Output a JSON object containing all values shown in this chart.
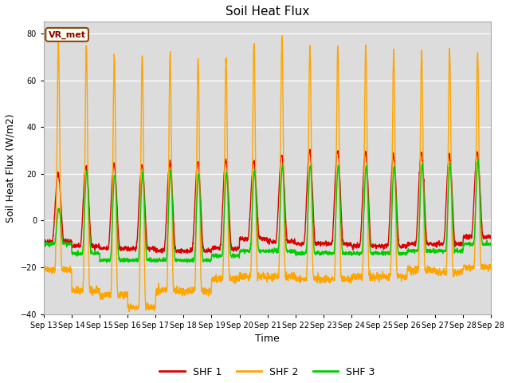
{
  "title": "Soil Heat Flux",
  "ylabel": "Soil Heat Flux (W/m2)",
  "xlabel": "Time",
  "ylim": [
    -40,
    85
  ],
  "yticks": [
    -40,
    -20,
    0,
    20,
    40,
    60,
    80
  ],
  "figure_bg": "#ffffff",
  "plot_bg": "#dcdcdc",
  "legend_labels": [
    "SHF 1",
    "SHF 2",
    "SHF 3"
  ],
  "legend_colors": [
    "#dd0000",
    "#ffa500",
    "#00cc00"
  ],
  "watermark_text": "VR_met",
  "num_days": 16,
  "xtick_labels": [
    "Sep 13",
    "Sep 14",
    "Sep 15",
    "Sep 16",
    "Sep 17",
    "Sep 18",
    "Sep 19",
    "Sep 20",
    "Sep 21",
    "Sep 22",
    "Sep 23",
    "Sep 24",
    "Sep 25",
    "Sep 26",
    "Sep 27",
    "Sep 28",
    "Sep 28"
  ],
  "shf1_peaks": [
    20,
    23,
    24,
    24,
    25,
    25,
    26,
    25,
    28,
    30,
    30,
    29,
    28,
    29,
    28,
    29
  ],
  "shf1_nights": [
    -9,
    -11,
    -12,
    -12,
    -13,
    -13,
    -12,
    -8,
    -9,
    -10,
    -10,
    -11,
    -11,
    -10,
    -10,
    -7
  ],
  "shf2_peaks": [
    76,
    75,
    71,
    71,
    71,
    69,
    69,
    76,
    78,
    75,
    75,
    75,
    73,
    72,
    73,
    72
  ],
  "shf2_nights": [
    -21,
    -30,
    -32,
    -37,
    -30,
    -30,
    -25,
    -24,
    -24,
    -25,
    -25,
    -24,
    -24,
    -21,
    -22,
    -20
  ],
  "shf3_peaks": [
    5,
    21,
    20,
    20,
    21,
    20,
    20,
    21,
    23,
    23,
    23,
    23,
    23,
    24,
    24,
    25
  ],
  "shf3_nights": [
    -10,
    -14,
    -17,
    -17,
    -17,
    -17,
    -15,
    -13,
    -13,
    -14,
    -14,
    -14,
    -14,
    -13,
    -13,
    -10
  ]
}
